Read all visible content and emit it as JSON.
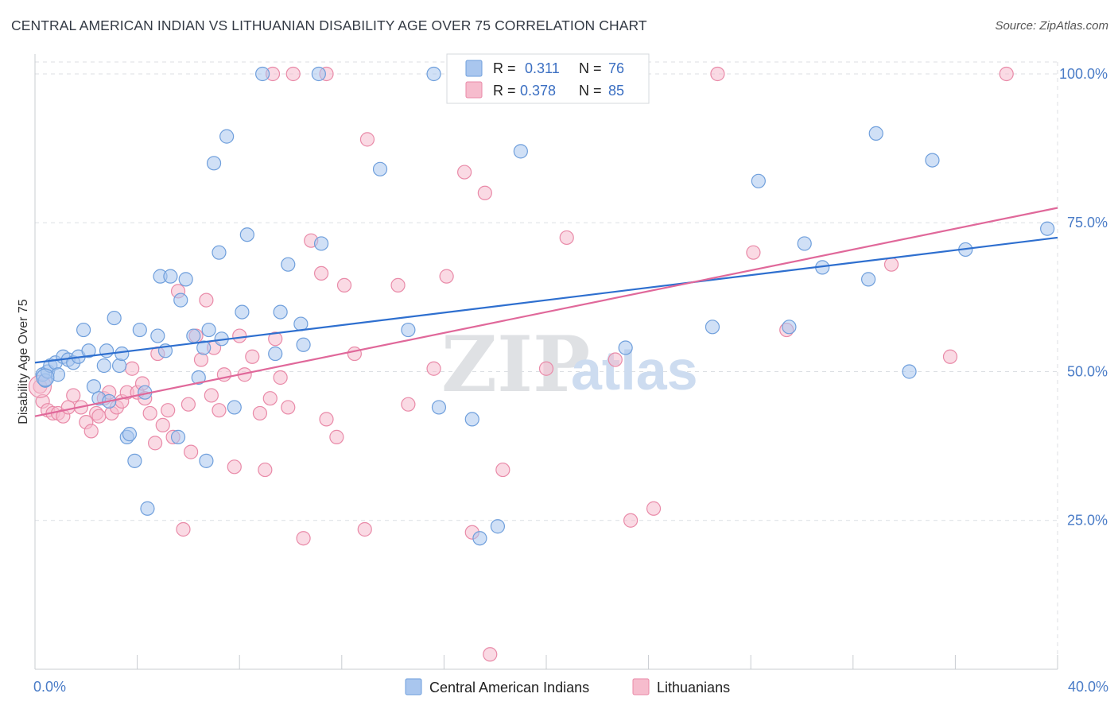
{
  "title": "CENTRAL AMERICAN INDIAN VS LITHUANIAN DISABILITY AGE OVER 75 CORRELATION CHART",
  "source": "Source: ZipAtlas.com",
  "watermark": {
    "zip": "ZIP",
    "atlas": "atlas"
  },
  "colors": {
    "blue_fill": "#a9c6ee",
    "blue_stroke": "#6f9fdc",
    "blue_line": "#2e6fcf",
    "pink_fill": "#f6bccd",
    "pink_stroke": "#e98aa8",
    "pink_line": "#e0689a",
    "tick_label": "#4a7cc7",
    "grid": "#dcdfe3"
  },
  "legend": {
    "rows": [
      {
        "r_label": "R =",
        "r_value": "0.311",
        "n_label": "N =",
        "n_value": "76"
      },
      {
        "r_label": "R =",
        "r_value": "0.378",
        "n_label": "N =",
        "n_value": "85"
      }
    ]
  },
  "bottom_legend": [
    "Central American Indians",
    "Lithuanians"
  ],
  "chart_data": {
    "type": "scatter",
    "title": "CENTRAL AMERICAN INDIAN VS LITHUANIAN DISABILITY AGE OVER 75 CORRELATION CHART",
    "xlabel": "",
    "ylabel": "Disability Age Over 75",
    "xlim": [
      0,
      40
    ],
    "ylim": [
      0,
      102
    ],
    "x_tick_labels": [
      "0.0%",
      "40.0%"
    ],
    "y_ticks": [
      25,
      50,
      75,
      100
    ],
    "y_tick_labels": [
      "25.0%",
      "50.0%",
      "75.0%",
      "100.0%"
    ],
    "grid": true,
    "legend_position": "top-center",
    "series": [
      {
        "name": "Central American Indians",
        "R": 0.311,
        "N": 76,
        "trend": {
          "x": [
            0,
            40
          ],
          "y": [
            51.5,
            72.5
          ]
        },
        "points": [
          [
            0.3,
            49.5
          ],
          [
            0.4,
            48.5
          ],
          [
            0.5,
            50
          ],
          [
            0.6,
            51
          ],
          [
            0.8,
            51.5
          ],
          [
            0.9,
            49.5
          ],
          [
            1.1,
            52.5
          ],
          [
            1.3,
            52
          ],
          [
            1.5,
            51.5
          ],
          [
            1.7,
            52.5
          ],
          [
            1.9,
            57
          ],
          [
            2.1,
            53.5
          ],
          [
            2.3,
            47.5
          ],
          [
            2.5,
            45.5
          ],
          [
            2.7,
            51
          ],
          [
            2.8,
            53.5
          ],
          [
            2.9,
            45
          ],
          [
            3.1,
            59
          ],
          [
            3.3,
            51
          ],
          [
            3.4,
            53
          ],
          [
            3.6,
            39
          ],
          [
            3.7,
            39.5
          ],
          [
            3.9,
            35
          ],
          [
            4.1,
            57
          ],
          [
            4.3,
            46.5
          ],
          [
            4.4,
            27
          ],
          [
            4.8,
            56
          ],
          [
            4.9,
            66
          ],
          [
            5.1,
            53.5
          ],
          [
            5.3,
            66
          ],
          [
            5.6,
            39
          ],
          [
            5.7,
            62
          ],
          [
            5.9,
            65.5
          ],
          [
            6.2,
            56
          ],
          [
            6.4,
            49
          ],
          [
            6.6,
            54
          ],
          [
            6.7,
            35
          ],
          [
            6.8,
            57
          ],
          [
            7.0,
            85
          ],
          [
            7.2,
            70
          ],
          [
            7.3,
            55.5
          ],
          [
            7.5,
            89.5
          ],
          [
            7.8,
            44
          ],
          [
            8.1,
            60
          ],
          [
            8.3,
            73
          ],
          [
            8.9,
            100
          ],
          [
            9.4,
            53
          ],
          [
            9.6,
            60
          ],
          [
            9.9,
            68
          ],
          [
            10.4,
            58
          ],
          [
            10.5,
            54.5
          ],
          [
            11.1,
            100
          ],
          [
            11.2,
            71.5
          ],
          [
            13.5,
            84
          ],
          [
            14.6,
            57
          ],
          [
            15.6,
            100
          ],
          [
            15.8,
            44
          ],
          [
            17.1,
            42
          ],
          [
            17.4,
            22
          ],
          [
            18.1,
            24
          ],
          [
            19.0,
            87
          ],
          [
            20.5,
            100
          ],
          [
            23.1,
            54
          ],
          [
            26.5,
            57.5
          ],
          [
            28.3,
            82
          ],
          [
            29.5,
            57.5
          ],
          [
            30.1,
            71.5
          ],
          [
            30.8,
            67.5
          ],
          [
            32.6,
            65.5
          ],
          [
            32.9,
            90
          ],
          [
            34.2,
            50
          ],
          [
            35.1,
            85.5
          ],
          [
            36.4,
            70.5
          ],
          [
            39.6,
            74
          ]
        ]
      },
      {
        "name": "Lithuanians",
        "R": 0.378,
        "N": 85,
        "trend": {
          "x": [
            0,
            40
          ],
          "y": [
            42.5,
            77.5
          ]
        },
        "points": [
          [
            0.2,
            47.5
          ],
          [
            0.3,
            45
          ],
          [
            0.5,
            43.5
          ],
          [
            0.7,
            43
          ],
          [
            0.9,
            43
          ],
          [
            1.1,
            42.5
          ],
          [
            1.3,
            44
          ],
          [
            1.5,
            46
          ],
          [
            1.8,
            44
          ],
          [
            2.0,
            41.5
          ],
          [
            2.2,
            40
          ],
          [
            2.4,
            43
          ],
          [
            2.5,
            42.5
          ],
          [
            2.7,
            45.5
          ],
          [
            2.9,
            46.5
          ],
          [
            3.0,
            43
          ],
          [
            3.2,
            44
          ],
          [
            3.4,
            45
          ],
          [
            3.6,
            46.5
          ],
          [
            3.8,
            50.5
          ],
          [
            4.0,
            46.5
          ],
          [
            4.2,
            48
          ],
          [
            4.3,
            45.5
          ],
          [
            4.5,
            43
          ],
          [
            4.7,
            38
          ],
          [
            4.8,
            53
          ],
          [
            5.0,
            41
          ],
          [
            5.2,
            43.5
          ],
          [
            5.4,
            39
          ],
          [
            5.6,
            63.5
          ],
          [
            5.8,
            23.5
          ],
          [
            6.0,
            44.5
          ],
          [
            6.1,
            36.5
          ],
          [
            6.3,
            56
          ],
          [
            6.5,
            52
          ],
          [
            6.7,
            62
          ],
          [
            6.9,
            46
          ],
          [
            7.0,
            54
          ],
          [
            7.2,
            43.5
          ],
          [
            7.4,
            49.5
          ],
          [
            7.8,
            34
          ],
          [
            8.0,
            56
          ],
          [
            8.2,
            49.5
          ],
          [
            8.5,
            52.5
          ],
          [
            8.8,
            43
          ],
          [
            9.0,
            33.5
          ],
          [
            9.2,
            45.5
          ],
          [
            9.4,
            55.5
          ],
          [
            9.6,
            49
          ],
          [
            9.9,
            44
          ],
          [
            10.1,
            100
          ],
          [
            10.5,
            22
          ],
          [
            10.8,
            72
          ],
          [
            11.2,
            66.5
          ],
          [
            11.4,
            42
          ],
          [
            11.8,
            39
          ],
          [
            12.1,
            64.5
          ],
          [
            12.5,
            53
          ],
          [
            12.9,
            23.5
          ],
          [
            13.0,
            89
          ],
          [
            14.2,
            64.5
          ],
          [
            14.6,
            44.5
          ],
          [
            15.6,
            50.5
          ],
          [
            16.1,
            66
          ],
          [
            16.8,
            83.5
          ],
          [
            17.1,
            23
          ],
          [
            17.6,
            80
          ],
          [
            17.8,
            2.5
          ],
          [
            18.3,
            33.5
          ],
          [
            20.0,
            50.5
          ],
          [
            20.8,
            72.5
          ],
          [
            22.7,
            52
          ],
          [
            23.3,
            25
          ],
          [
            24.2,
            27
          ],
          [
            26.7,
            100
          ],
          [
            28.1,
            70
          ],
          [
            29.4,
            57
          ],
          [
            33.5,
            68
          ],
          [
            35.8,
            52.5
          ],
          [
            38.0,
            100
          ],
          [
            11.4,
            100
          ],
          [
            9.3,
            100
          ]
        ]
      }
    ]
  }
}
